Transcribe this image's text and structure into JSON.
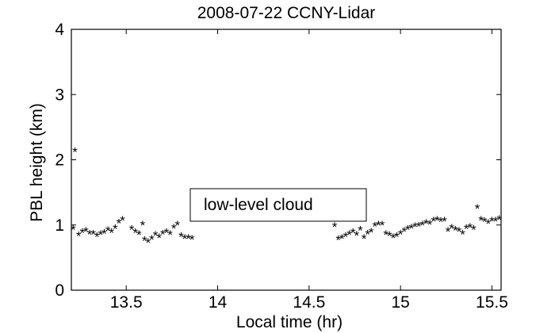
{
  "chart_data": {
    "type": "scatter",
    "title": "2008-07-22 CCNY-Lidar",
    "xlabel": "Local time (hr)",
    "ylabel": "PBL height (km)",
    "xlim": [
      13.2,
      15.55
    ],
    "ylim": [
      0,
      4
    ],
    "xticks": [
      "13.5",
      "14",
      "14.5",
      "15",
      "15.5"
    ],
    "yticks": [
      "0",
      "1",
      "2",
      "3",
      "4"
    ],
    "grid": false,
    "legend": "none",
    "marker": "*",
    "marker_color": "#000000",
    "annotation": {
      "text": "low-level cloud",
      "x": 13.95,
      "y": 1.3
    },
    "series": [
      {
        "x": [
          13.21,
          13.22,
          13.24,
          13.26,
          13.28,
          13.3,
          13.32,
          13.34,
          13.36,
          13.38,
          13.4,
          13.42,
          13.44,
          13.46,
          13.48,
          13.53,
          13.55,
          13.57,
          13.59,
          13.6,
          13.62,
          13.64,
          13.66,
          13.68,
          13.7,
          13.72,
          13.74,
          13.76,
          13.78,
          13.8,
          13.82,
          13.84,
          13.86,
          14.64,
          14.66,
          14.68,
          14.7,
          14.72,
          14.74,
          14.76,
          14.78,
          14.8,
          14.82,
          14.84,
          14.86,
          14.88,
          14.9,
          14.92,
          14.94,
          14.96,
          14.98,
          15.0,
          15.02,
          15.04,
          15.06,
          15.08,
          15.1,
          15.12,
          15.14,
          15.16,
          15.18,
          15.2,
          15.22,
          15.24,
          15.26,
          15.28,
          15.3,
          15.32,
          15.34,
          15.36,
          15.38,
          15.4,
          15.42,
          15.44,
          15.46,
          15.48,
          15.5,
          15.52,
          15.54
        ],
        "y": [
          0.93,
          2.12,
          0.83,
          0.88,
          0.9,
          0.86,
          0.86,
          0.82,
          0.85,
          0.87,
          0.91,
          0.88,
          0.94,
          1.03,
          1.07,
          0.93,
          0.88,
          0.85,
          1.0,
          0.76,
          0.73,
          0.78,
          0.84,
          0.8,
          0.86,
          0.88,
          0.85,
          0.95,
          1.0,
          0.82,
          0.79,
          0.79,
          0.78,
          0.97,
          0.77,
          0.79,
          0.82,
          0.85,
          0.88,
          0.84,
          0.92,
          0.79,
          0.86,
          0.89,
          0.98,
          1.0,
          1.0,
          0.85,
          0.83,
          0.8,
          0.82,
          0.86,
          0.9,
          0.93,
          0.95,
          0.97,
          0.98,
          1.0,
          1.02,
          1.01,
          1.06,
          1.07,
          1.05,
          1.06,
          0.9,
          0.95,
          0.92,
          0.9,
          0.86,
          0.94,
          0.96,
          0.93,
          1.25,
          1.07,
          1.05,
          1.02,
          1.06,
          1.06,
          1.08
        ]
      }
    ]
  }
}
